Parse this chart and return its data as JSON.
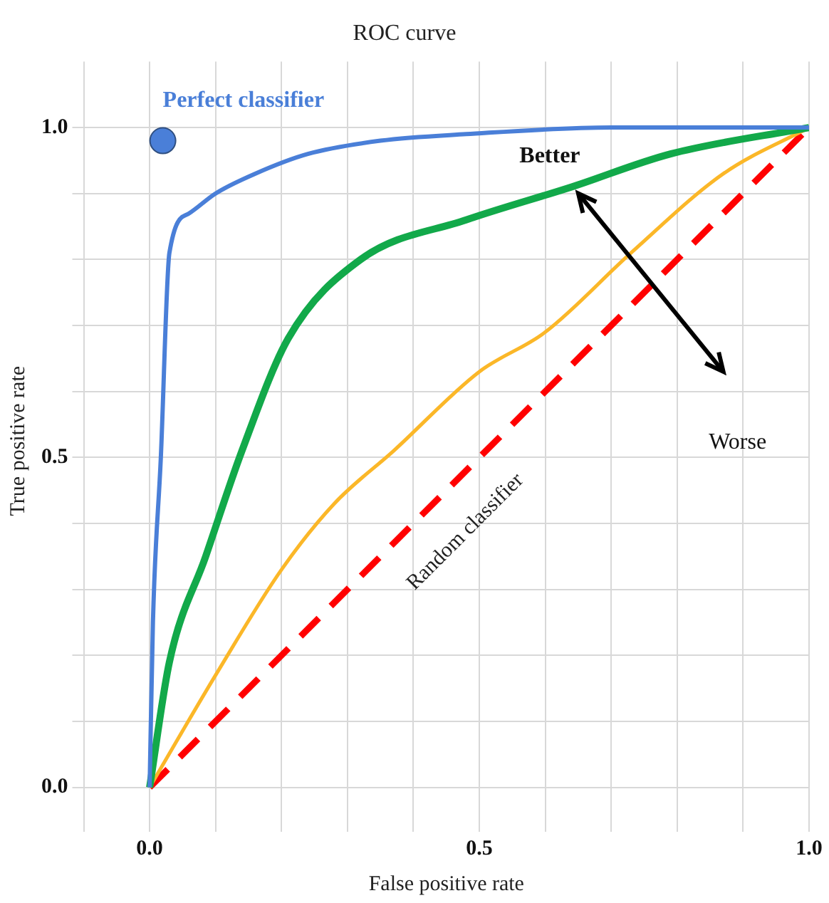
{
  "chart_data": {
    "type": "line",
    "title": "ROC curve",
    "xlabel": "False positive rate",
    "ylabel": "True positive rate",
    "xlim": [
      -0.1,
      1.0
    ],
    "ylim": [
      -0.05,
      1.1
    ],
    "xticks": [
      {
        "value": -0.1,
        "label": null
      },
      {
        "value": 0,
        "label": "0.0"
      },
      {
        "value": 0.1,
        "label": null
      },
      {
        "value": 0.2,
        "label": null
      },
      {
        "value": 0.3,
        "label": null
      },
      {
        "value": 0.4,
        "label": null
      },
      {
        "value": 0.5,
        "label": "0.5"
      },
      {
        "value": 0.6,
        "label": null
      },
      {
        "value": 0.7,
        "label": null
      },
      {
        "value": 0.8,
        "label": null
      },
      {
        "value": 0.9,
        "label": null
      },
      {
        "value": 1.0,
        "label": "1.0"
      }
    ],
    "yticks": [
      {
        "value": 0,
        "label": "0.0"
      },
      {
        "value": 0.1,
        "label": null
      },
      {
        "value": 0.2,
        "label": null
      },
      {
        "value": 0.3,
        "label": null
      },
      {
        "value": 0.4,
        "label": null
      },
      {
        "value": 0.5,
        "label": "0.5"
      },
      {
        "value": 0.6,
        "label": null
      },
      {
        "value": 0.7,
        "label": null
      },
      {
        "value": 0.8,
        "label": null
      },
      {
        "value": 0.9,
        "label": null
      },
      {
        "value": 1.0,
        "label": "1.0"
      }
    ],
    "grid": true,
    "legend": false,
    "annotations": [
      "Better",
      "Worse"
    ],
    "series": [
      {
        "color": "#4a7fd8",
        "x": [
          0,
          0.005,
          0.017,
          0.03,
          0.06,
          0.1,
          0.16,
          0.24,
          0.35,
          0.48,
          0.7,
          1.0
        ],
        "values": [
          0,
          0.25,
          0.5,
          0.81,
          0.87,
          0.9,
          0.93,
          0.96,
          0.98,
          0.99,
          1.0,
          1.0
        ]
      },
      {
        "color": "#12a94a",
        "x": [
          0,
          0.03,
          0.085,
          0.14,
          0.21,
          0.32,
          0.48,
          0.64,
          0.79,
          1.0
        ],
        "values": [
          0,
          0.19,
          0.35,
          0.51,
          0.68,
          0.8,
          0.86,
          0.91,
          0.96,
          1.0
        ]
      },
      {
        "color": "#fbb728",
        "x": [
          0,
          0.1,
          0.2,
          0.28,
          0.37,
          0.5,
          0.6,
          0.73,
          0.87,
          1.0
        ],
        "values": [
          0,
          0.17,
          0.33,
          0.43,
          0.51,
          0.63,
          0.69,
          0.81,
          0.93,
          1.0
        ]
      },
      {
        "name": "Random classifier",
        "color": "#ff0000",
        "line_style": "dashed",
        "x": [
          0,
          1.0
        ],
        "values": [
          0,
          1.0
        ]
      },
      {
        "type": "scatter",
        "name": "Perfect classifier",
        "color": "#4a7fd8",
        "marker": "circle",
        "x": [
          0.02
        ],
        "values": [
          0.98
        ]
      }
    ]
  }
}
